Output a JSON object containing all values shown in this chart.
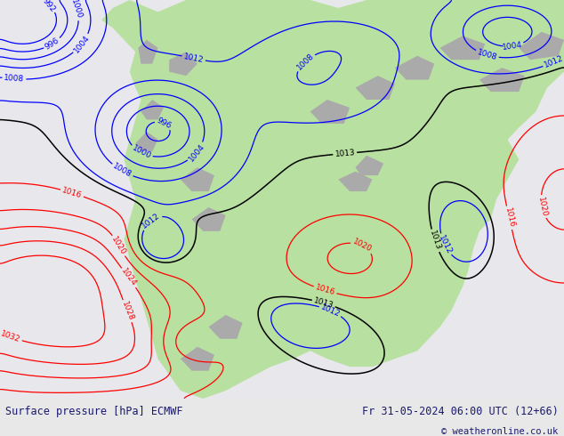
{
  "title_left": "Surface pressure [hPa] ECMWF",
  "title_right": "Fr 31-05-2024 06:00 UTC (12+66)",
  "copyright": "© weatheronline.co.uk",
  "ocean_color": "#e8e8ec",
  "land_color": "#b8e0a0",
  "grey_color": "#aaaaaa",
  "figure_width": 6.34,
  "figure_height": 4.9,
  "dpi": 100,
  "bottom_bar_color": "#e8e8e8",
  "text_color": "#1a1a6e",
  "font_size_labels": 8.5,
  "font_size_copy": 7.5
}
